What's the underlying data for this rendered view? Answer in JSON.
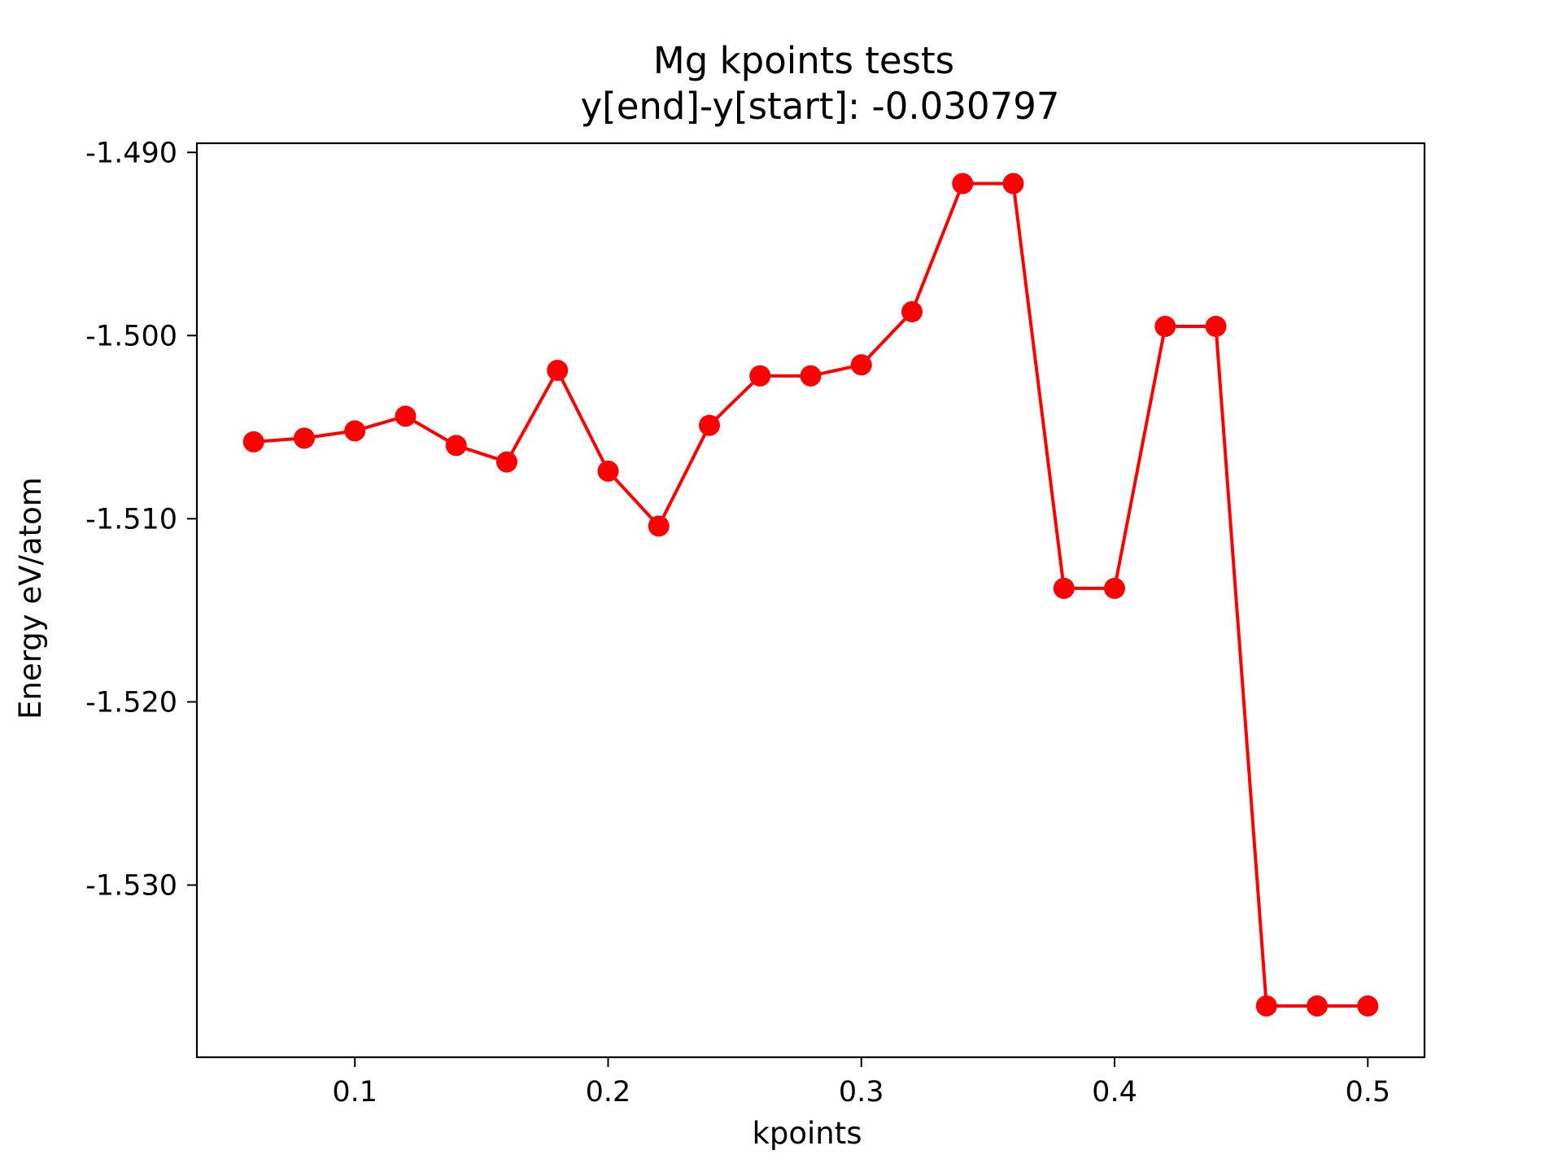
{
  "chart_data": {
    "type": "line",
    "title": "Mg kpoints tests",
    "subtitle": "y[end]-y[start]:  -0.030797",
    "xlabel": "kpoints",
    "ylabel": "Energy eV/atom",
    "xlim": [
      0.0376,
      0.5224
    ],
    "ylim": [
      -1.5394,
      -1.4895
    ],
    "xticks": [
      0.1,
      0.2,
      0.3,
      0.4,
      0.5
    ],
    "xtick_labels": [
      "0.1",
      "0.2",
      "0.3",
      "0.4",
      "0.5"
    ],
    "yticks": [
      -1.49,
      -1.5,
      -1.51,
      -1.52,
      -1.53
    ],
    "ytick_labels": [
      "-1.490",
      "-1.500",
      "-1.510",
      "-1.520",
      "-1.530"
    ],
    "grid": false,
    "series": [
      {
        "color": "#ff0000",
        "marker": "circle",
        "x": [
          0.06,
          0.08,
          0.1,
          0.12,
          0.14,
          0.16,
          0.18,
          0.2,
          0.22,
          0.24,
          0.26,
          0.28,
          0.3,
          0.32,
          0.34,
          0.36,
          0.38,
          0.4,
          0.42,
          0.44,
          0.46,
          0.48,
          0.5
        ],
        "y": [
          -1.5058,
          -1.5056,
          -1.5052,
          -1.5044,
          -1.506,
          -1.5069,
          -1.5019,
          -1.5074,
          -1.5104,
          -1.5049,
          -1.5022,
          -1.5022,
          -1.5016,
          -1.4987,
          -1.4917,
          -1.4917,
          -1.5138,
          -1.5138,
          -1.4995,
          -1.4995,
          -1.5366,
          -1.5366,
          -1.5366
        ]
      }
    ]
  }
}
